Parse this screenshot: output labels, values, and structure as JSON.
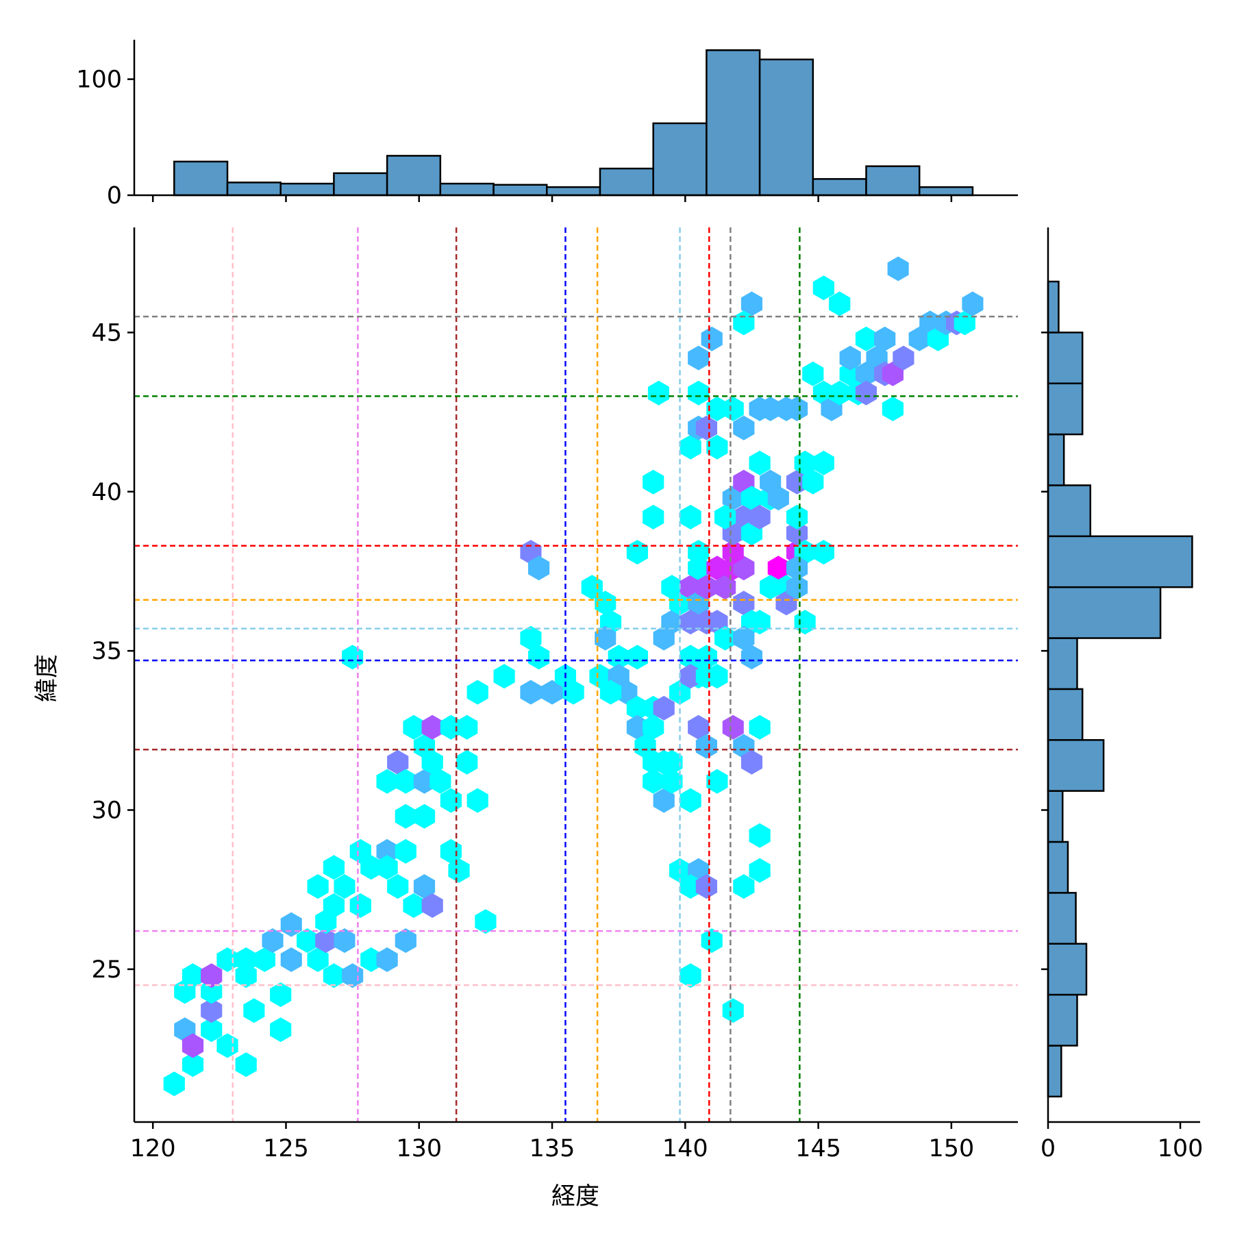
{
  "chart_data": {
    "type": "hexbin",
    "xlabel": "経度",
    "ylabel": "緯度",
    "xlim": [
      119.3,
      152.5
    ],
    "ylim": [
      20.2,
      48.3
    ],
    "xticks": [
      120,
      125,
      130,
      135,
      140,
      145,
      150
    ],
    "yticks": [
      25,
      30,
      35,
      40,
      45
    ],
    "colors": {
      "bar": "#5899c7",
      "edge": "#000000",
      "cmap_low": "#00ffff",
      "cmap_high": "#ff00ff"
    },
    "hexbins": [
      [
        120.8,
        21.4,
        1
      ],
      [
        121.5,
        22.0,
        1
      ],
      [
        121.2,
        23.1,
        2
      ],
      [
        122.2,
        23.1,
        1
      ],
      [
        121.5,
        22.6,
        4
      ],
      [
        122.8,
        22.6,
        1
      ],
      [
        123.5,
        22.0,
        1
      ],
      [
        122.2,
        23.7,
        3
      ],
      [
        121.2,
        24.3,
        1
      ],
      [
        122.2,
        24.3,
        1
      ],
      [
        121.5,
        24.8,
        1
      ],
      [
        122.2,
        24.8,
        4
      ],
      [
        122.8,
        25.3,
        1
      ],
      [
        123.5,
        25.3,
        1
      ],
      [
        123.5,
        24.8,
        1
      ],
      [
        124.2,
        25.3,
        1
      ],
      [
        124.5,
        25.9,
        2
      ],
      [
        125.2,
        25.3,
        2
      ],
      [
        124.8,
        24.2,
        1
      ],
      [
        124.8,
        23.1,
        1
      ],
      [
        123.8,
        23.7,
        1
      ],
      [
        125.2,
        26.4,
        2
      ],
      [
        125.8,
        25.9,
        1
      ],
      [
        126.2,
        25.3,
        1
      ],
      [
        126.5,
        25.9,
        3
      ],
      [
        127.2,
        25.9,
        2
      ],
      [
        126.5,
        26.5,
        1
      ],
      [
        126.2,
        27.6,
        1
      ],
      [
        126.8,
        27.0,
        1
      ],
      [
        126.8,
        28.2,
        1
      ],
      [
        127.2,
        27.6,
        1
      ],
      [
        126.8,
        24.8,
        1
      ],
      [
        127.5,
        24.8,
        2
      ],
      [
        128.2,
        25.3,
        1
      ],
      [
        128.8,
        25.3,
        2
      ],
      [
        127.8,
        27.0,
        1
      ],
      [
        127.8,
        28.7,
        1
      ],
      [
        128.2,
        28.2,
        1
      ],
      [
        128.8,
        28.7,
        2
      ],
      [
        128.8,
        28.2,
        1
      ],
      [
        129.5,
        28.7,
        1
      ],
      [
        129.2,
        27.6,
        1
      ],
      [
        129.8,
        27.0,
        1
      ],
      [
        130.2,
        27.6,
        2
      ],
      [
        130.5,
        27.0,
        3
      ],
      [
        129.5,
        25.9,
        2
      ],
      [
        128.8,
        30.9,
        1
      ],
      [
        129.2,
        31.5,
        3
      ],
      [
        129.5,
        30.9,
        1
      ],
      [
        130.2,
        30.9,
        2
      ],
      [
        129.5,
        29.8,
        1
      ],
      [
        130.2,
        29.8,
        1
      ],
      [
        129.8,
        32.6,
        1
      ],
      [
        130.2,
        32.0,
        1
      ],
      [
        130.5,
        32.6,
        4
      ],
      [
        130.5,
        31.5,
        1
      ],
      [
        130.8,
        30.9,
        1
      ],
      [
        131.2,
        30.3,
        1
      ],
      [
        131.2,
        32.6,
        1
      ],
      [
        131.8,
        32.6,
        1
      ],
      [
        131.8,
        31.5,
        1
      ],
      [
        132.2,
        30.3,
        1
      ],
      [
        131.2,
        28.7,
        1
      ],
      [
        131.5,
        28.1,
        1
      ],
      [
        132.2,
        33.7,
        1
      ],
      [
        133.2,
        34.2,
        1
      ],
      [
        132.5,
        26.5,
        1
      ],
      [
        127.5,
        34.8,
        1
      ],
      [
        134.2,
        35.4,
        1
      ],
      [
        134.5,
        34.8,
        1
      ],
      [
        134.2,
        33.7,
        2
      ],
      [
        135.0,
        33.7,
        2
      ],
      [
        135.5,
        34.2,
        1
      ],
      [
        135.8,
        33.7,
        1
      ],
      [
        134.2,
        38.1,
        3
      ],
      [
        134.5,
        37.6,
        2
      ],
      [
        136.5,
        37.0,
        1
      ],
      [
        137.0,
        36.5,
        1
      ],
      [
        137.2,
        35.9,
        1
      ],
      [
        137.0,
        35.4,
        2
      ],
      [
        136.8,
        34.2,
        1
      ],
      [
        137.5,
        34.8,
        1
      ],
      [
        137.5,
        34.2,
        2
      ],
      [
        137.8,
        33.7,
        2
      ],
      [
        137.2,
        33.7,
        1
      ],
      [
        138.2,
        34.8,
        1
      ],
      [
        138.2,
        33.2,
        1
      ],
      [
        138.8,
        33.2,
        1
      ],
      [
        138.2,
        32.6,
        2
      ],
      [
        138.5,
        32.0,
        1
      ],
      [
        138.8,
        32.6,
        1
      ],
      [
        139.2,
        33.2,
        3
      ],
      [
        138.2,
        38.1,
        1
      ],
      [
        138.8,
        31.5,
        1
      ],
      [
        139.2,
        31.5,
        1
      ],
      [
        138.8,
        30.9,
        1
      ],
      [
        139.2,
        30.3,
        2
      ],
      [
        139.5,
        31.5,
        1
      ],
      [
        139.5,
        30.9,
        1
      ],
      [
        139.8,
        33.7,
        1
      ],
      [
        139.2,
        35.4,
        2
      ],
      [
        139.5,
        35.9,
        2
      ],
      [
        139.5,
        37.0,
        1
      ],
      [
        139.8,
        36.5,
        1
      ],
      [
        140.2,
        37.0,
        4
      ],
      [
        140.5,
        36.5,
        2
      ],
      [
        140.2,
        35.9,
        3
      ],
      [
        140.8,
        35.9,
        3
      ],
      [
        140.2,
        34.8,
        1
      ],
      [
        140.5,
        34.2,
        1
      ],
      [
        140.2,
        34.2,
        3
      ],
      [
        140.8,
        34.2,
        1
      ],
      [
        140.8,
        34.8,
        1
      ],
      [
        140.5,
        32.6,
        3
      ],
      [
        140.8,
        32.0,
        2
      ],
      [
        140.2,
        30.3,
        1
      ],
      [
        140.5,
        37.6,
        1
      ],
      [
        140.8,
        37.0,
        4
      ],
      [
        140.5,
        38.1,
        1
      ],
      [
        141.2,
        37.6,
        5
      ],
      [
        141.5,
        37.0,
        4
      ],
      [
        141.2,
        35.9,
        3
      ],
      [
        141.5,
        35.4,
        1
      ],
      [
        141.2,
        34.2,
        1
      ],
      [
        141.2,
        30.9,
        1
      ],
      [
        141.8,
        32.6,
        4
      ],
      [
        142.2,
        32.0,
        2
      ],
      [
        142.5,
        31.5,
        3
      ],
      [
        142.8,
        32.6,
        1
      ],
      [
        141.8,
        37.6,
        5
      ],
      [
        142.2,
        37.6,
        4
      ],
      [
        141.8,
        38.1,
        5
      ],
      [
        141.8,
        38.7,
        3
      ],
      [
        142.2,
        39.2,
        3
      ],
      [
        142.5,
        38.7,
        1
      ],
      [
        142.2,
        36.5,
        3
      ],
      [
        142.5,
        35.9,
        1
      ],
      [
        142.2,
        35.4,
        2
      ],
      [
        142.5,
        34.8,
        2
      ],
      [
        142.8,
        35.9,
        1
      ],
      [
        143.5,
        37.6,
        6
      ],
      [
        143.2,
        37.0,
        1
      ],
      [
        143.8,
        37.0,
        1
      ],
      [
        143.8,
        36.5,
        3
      ],
      [
        144.2,
        38.1,
        5
      ],
      [
        144.2,
        38.7,
        3
      ],
      [
        144.5,
        38.1,
        1
      ],
      [
        144.2,
        37.6,
        2
      ],
      [
        144.2,
        37.0,
        2
      ],
      [
        144.5,
        35.9,
        1
      ],
      [
        145.2,
        38.1,
        1
      ],
      [
        141.8,
        39.8,
        2
      ],
      [
        141.5,
        39.2,
        1
      ],
      [
        142.2,
        40.3,
        4
      ],
      [
        142.5,
        39.8,
        1
      ],
      [
        142.8,
        39.2,
        3
      ],
      [
        143.2,
        39.8,
        1
      ],
      [
        143.2,
        40.3,
        2
      ],
      [
        143.5,
        39.8,
        2
      ],
      [
        144.2,
        40.3,
        3
      ],
      [
        144.2,
        39.2,
        1
      ],
      [
        144.5,
        40.9,
        1
      ],
      [
        145.2,
        40.9,
        1
      ],
      [
        144.8,
        40.3,
        1
      ],
      [
        142.8,
        40.9,
        1
      ],
      [
        140.2,
        41.4,
        1
      ],
      [
        140.5,
        42.0,
        2
      ],
      [
        141.2,
        41.4,
        1
      ],
      [
        140.8,
        42.0,
        3
      ],
      [
        141.2,
        42.6,
        1
      ],
      [
        141.8,
        42.6,
        1
      ],
      [
        142.2,
        42.0,
        2
      ],
      [
        142.8,
        42.6,
        2
      ],
      [
        143.2,
        42.6,
        2
      ],
      [
        143.8,
        42.6,
        2
      ],
      [
        144.2,
        42.6,
        2
      ],
      [
        144.8,
        43.7,
        1
      ],
      [
        145.2,
        43.1,
        1
      ],
      [
        145.5,
        42.6,
        2
      ],
      [
        145.8,
        43.1,
        1
      ],
      [
        146.2,
        43.7,
        1
      ],
      [
        146.5,
        43.1,
        1
      ],
      [
        146.8,
        43.7,
        2
      ],
      [
        146.8,
        43.1,
        3
      ],
      [
        146.2,
        44.2,
        2
      ],
      [
        146.8,
        44.8,
        1
      ],
      [
        147.2,
        44.2,
        2
      ],
      [
        147.5,
        43.7,
        3
      ],
      [
        147.5,
        44.8,
        2
      ],
      [
        147.8,
        43.7,
        4
      ],
      [
        148.2,
        44.2,
        3
      ],
      [
        147.8,
        42.6,
        1
      ],
      [
        148.8,
        44.8,
        2
      ],
      [
        149.2,
        45.3,
        2
      ],
      [
        149.5,
        44.8,
        1
      ],
      [
        149.8,
        45.3,
        2
      ],
      [
        150.2,
        45.3,
        3
      ],
      [
        150.5,
        45.3,
        1
      ],
      [
        150.8,
        45.9,
        2
      ],
      [
        148.0,
        47.0,
        2
      ],
      [
        145.2,
        46.4,
        1
      ],
      [
        145.8,
        45.9,
        1
      ],
      [
        142.5,
        45.9,
        2
      ],
      [
        142.2,
        45.3,
        1
      ],
      [
        141.0,
        44.8,
        2
      ],
      [
        140.5,
        44.2,
        2
      ],
      [
        140.5,
        43.1,
        1
      ],
      [
        139.0,
        43.1,
        1
      ],
      [
        138.8,
        40.3,
        1
      ],
      [
        138.8,
        39.2,
        1
      ],
      [
        140.2,
        39.2,
        1
      ],
      [
        139.8,
        28.1,
        1
      ],
      [
        140.5,
        28.1,
        2
      ],
      [
        140.2,
        27.6,
        1
      ],
      [
        140.8,
        27.6,
        3
      ],
      [
        141.0,
        25.9,
        1
      ],
      [
        142.2,
        27.6,
        1
      ],
      [
        142.8,
        28.1,
        1
      ],
      [
        142.8,
        29.2,
        1
      ],
      [
        140.2,
        24.8,
        1
      ],
      [
        141.8,
        23.7,
        1
      ]
    ],
    "histx": {
      "bin_edges": [
        120.8,
        122.8,
        124.8,
        126.8,
        128.8,
        130.8,
        132.8,
        134.8,
        136.8,
        138.8,
        140.8,
        142.8,
        144.8,
        146.8,
        148.8,
        150.8
      ],
      "counts": [
        29,
        11,
        10,
        19,
        34,
        10,
        9,
        7,
        23,
        62,
        125,
        117,
        14,
        25,
        7
      ],
      "ylim": [
        0,
        134
      ],
      "yticks": [
        0,
        100
      ]
    },
    "histy": {
      "bin_edges": [
        21.0,
        22.6,
        24.2,
        25.8,
        27.4,
        29.0,
        30.6,
        32.2,
        33.8,
        35.4,
        37.0,
        38.6,
        40.2,
        41.8,
        43.4,
        45.0,
        46.6
      ],
      "counts": [
        10,
        22,
        29,
        21,
        15,
        11,
        42,
        26,
        22,
        85,
        109,
        32,
        12,
        26,
        26,
        8
      ],
      "xlim": [
        0,
        115
      ],
      "xticks": [
        0,
        100
      ]
    },
    "reference_lines": {
      "vertical": [
        {
          "x": 123.0,
          "color": "#ffc0cb"
        },
        {
          "x": 127.7,
          "color": "#ee82ee"
        },
        {
          "x": 131.4,
          "color": "#a52a2a"
        },
        {
          "x": 135.5,
          "color": "#0000ff"
        },
        {
          "x": 136.7,
          "color": "#ffa500"
        },
        {
          "x": 139.8,
          "color": "#87ceeb"
        },
        {
          "x": 140.9,
          "color": "#ff0000"
        },
        {
          "x": 141.7,
          "color": "#808080"
        },
        {
          "x": 144.3,
          "color": "#008000"
        }
      ],
      "horizontal": [
        {
          "y": 45.5,
          "color": "#808080"
        },
        {
          "y": 43.0,
          "color": "#008000"
        },
        {
          "y": 38.3,
          "color": "#ff0000"
        },
        {
          "y": 36.6,
          "color": "#ffa500"
        },
        {
          "y": 35.7,
          "color": "#87ceeb"
        },
        {
          "y": 34.7,
          "color": "#0000ff"
        },
        {
          "y": 31.9,
          "color": "#a52a2a"
        },
        {
          "y": 26.2,
          "color": "#ee82ee"
        },
        {
          "y": 24.5,
          "color": "#ffc0cb"
        }
      ]
    }
  }
}
